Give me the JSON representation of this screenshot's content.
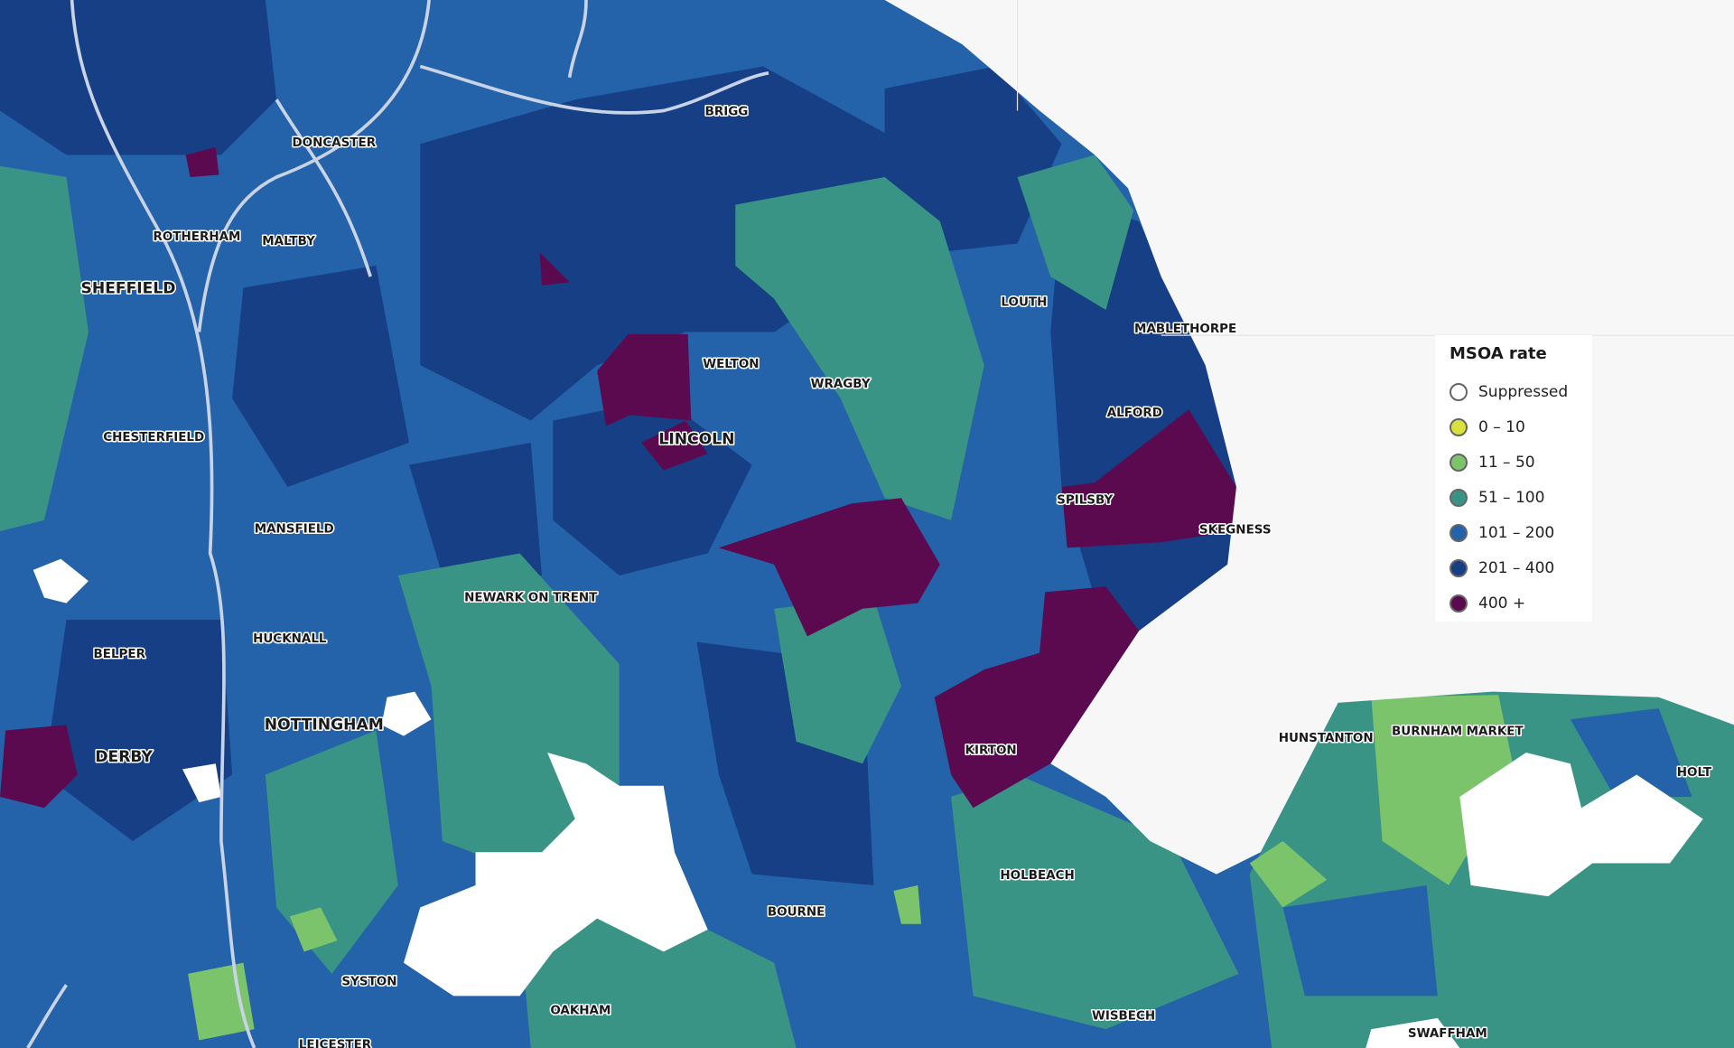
{
  "map": {
    "places": [
      "BRIGG",
      "DONCASTER",
      "ROTHERHAM",
      "MALTBY",
      "SHEFFIELD",
      "LOUTH",
      "MABLETHORPE",
      "WELTON",
      "WRAGBY",
      "ALFORD",
      "CHESTERFIELD",
      "LINCOLN",
      "SPILSBY",
      "SKEGNESS",
      "MANSFIELD",
      "NEWARK ON TRENT",
      "HUCKNALL",
      "BELPER",
      "NOTTINGHAM",
      "DERBY",
      "KIRTON",
      "HUNSTANTON",
      "BURNHAM MARKET",
      "HOLT",
      "HOLBEACH",
      "BOURNE",
      "SYSTON",
      "OAKHAM",
      "WISBECH",
      "SWAFFHAM",
      "LEICESTER"
    ]
  },
  "legend": {
    "title": "MSOA rate",
    "items": [
      {
        "label": "Suppressed",
        "color": "#ffffff"
      },
      {
        "label": "0 – 10",
        "color": "#d9e23c"
      },
      {
        "label": "11 – 50",
        "color": "#7cc46c"
      },
      {
        "label": "51 – 100",
        "color": "#3a9485"
      },
      {
        "label": "101 – 200",
        "color": "#2463aa"
      },
      {
        "label": "201 – 400",
        "color": "#163f86"
      },
      {
        "label": "400 +",
        "color": "#5b0a4f"
      }
    ]
  }
}
